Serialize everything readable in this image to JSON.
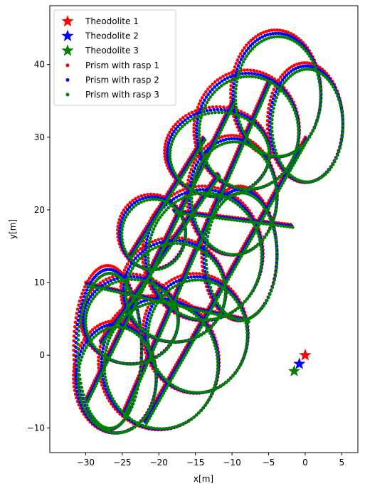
{
  "chart_data": {
    "type": "scatter",
    "xlabel": "x[m]",
    "ylabel": "y[m]",
    "xlim": [
      -34.9,
      7.2
    ],
    "ylim": [
      -13.4,
      48.1
    ],
    "xticks": [
      -30,
      -25,
      -20,
      -15,
      -10,
      -5,
      0,
      5
    ],
    "yticks": [
      -10,
      0,
      10,
      20,
      30,
      40
    ],
    "xtick_labels": [
      "−30",
      "−25",
      "−20",
      "−15",
      "−10",
      "−5",
      "0",
      "5"
    ],
    "ytick_labels": [
      "−10",
      "0",
      "10",
      "20",
      "30",
      "40"
    ],
    "grid": false,
    "legend_position": "top-left",
    "theodolites": [
      {
        "name": "Theodolite 1",
        "color": "#ff0000",
        "x": 0.0,
        "y": 0.0
      },
      {
        "name": "Theodolite 2",
        "color": "#0000ff",
        "x": -0.8,
        "y": -1.2
      },
      {
        "name": "Theodolite 3",
        "color": "#008000",
        "x": -1.5,
        "y": -2.2
      }
    ],
    "prism_series": [
      {
        "name": "Prism with rasp 1",
        "color": "#ff0000",
        "dx": 0.0,
        "dy": 0.0,
        "rscale": 1.03
      },
      {
        "name": "Prism with rasp 2",
        "color": "#0000ff",
        "dx": 0.15,
        "dy": -0.2,
        "rscale": 1.0
      },
      {
        "name": "Prism with rasp 3",
        "color": "#008000",
        "dx": 0.3,
        "dy": -0.4,
        "rscale": 0.97
      }
    ],
    "trajectory_loops": [
      {
        "cx": -26,
        "cy": -3,
        "rx": 5.5,
        "ry": 7.5
      },
      {
        "cx": -24,
        "cy": 5,
        "rx": 6.5,
        "ry": 6
      },
      {
        "cx": -20,
        "cy": -1,
        "rx": 8,
        "ry": 9
      },
      {
        "cx": -18,
        "cy": 9,
        "rx": 7,
        "ry": 7
      },
      {
        "cx": -14,
        "cy": 14,
        "rx": 8,
        "ry": 9
      },
      {
        "cx": -21,
        "cy": 17,
        "rx": 4.5,
        "ry": 5
      },
      {
        "cx": -10,
        "cy": 22,
        "rx": 6,
        "ry": 8
      },
      {
        "cx": -12,
        "cy": 28,
        "rx": 7,
        "ry": 6
      },
      {
        "cx": -4,
        "cy": 36,
        "rx": 6,
        "ry": 8.5
      },
      {
        "cx": 0,
        "cy": 32,
        "rx": 5,
        "ry": 8
      },
      {
        "cx": -8,
        "cy": 31,
        "rx": 7,
        "ry": 8
      },
      {
        "cx": -15,
        "cy": 3,
        "rx": 7,
        "ry": 8
      },
      {
        "cx": -9,
        "cy": 14,
        "rx": 5,
        "ry": 9
      },
      {
        "cx": -27,
        "cy": 1,
        "rx": 4.5,
        "ry": 11
      }
    ],
    "trajectory_lines": [
      {
        "x1": -30,
        "y1": -6,
        "x2": -10,
        "y2": 35
      },
      {
        "x1": -25,
        "y1": -8,
        "x2": -5,
        "y2": 38
      },
      {
        "x1": -30,
        "y1": 10,
        "x2": -8,
        "y2": 5
      },
      {
        "x1": -28,
        "y1": 2,
        "x2": -12,
        "y2": 25
      },
      {
        "x1": -22,
        "y1": -9,
        "x2": 0,
        "y2": 30
      },
      {
        "x1": -18,
        "y1": 20,
        "x2": -2,
        "y2": 18
      },
      {
        "x1": -24,
        "y1": 14,
        "x2": -14,
        "y2": 30
      }
    ]
  }
}
